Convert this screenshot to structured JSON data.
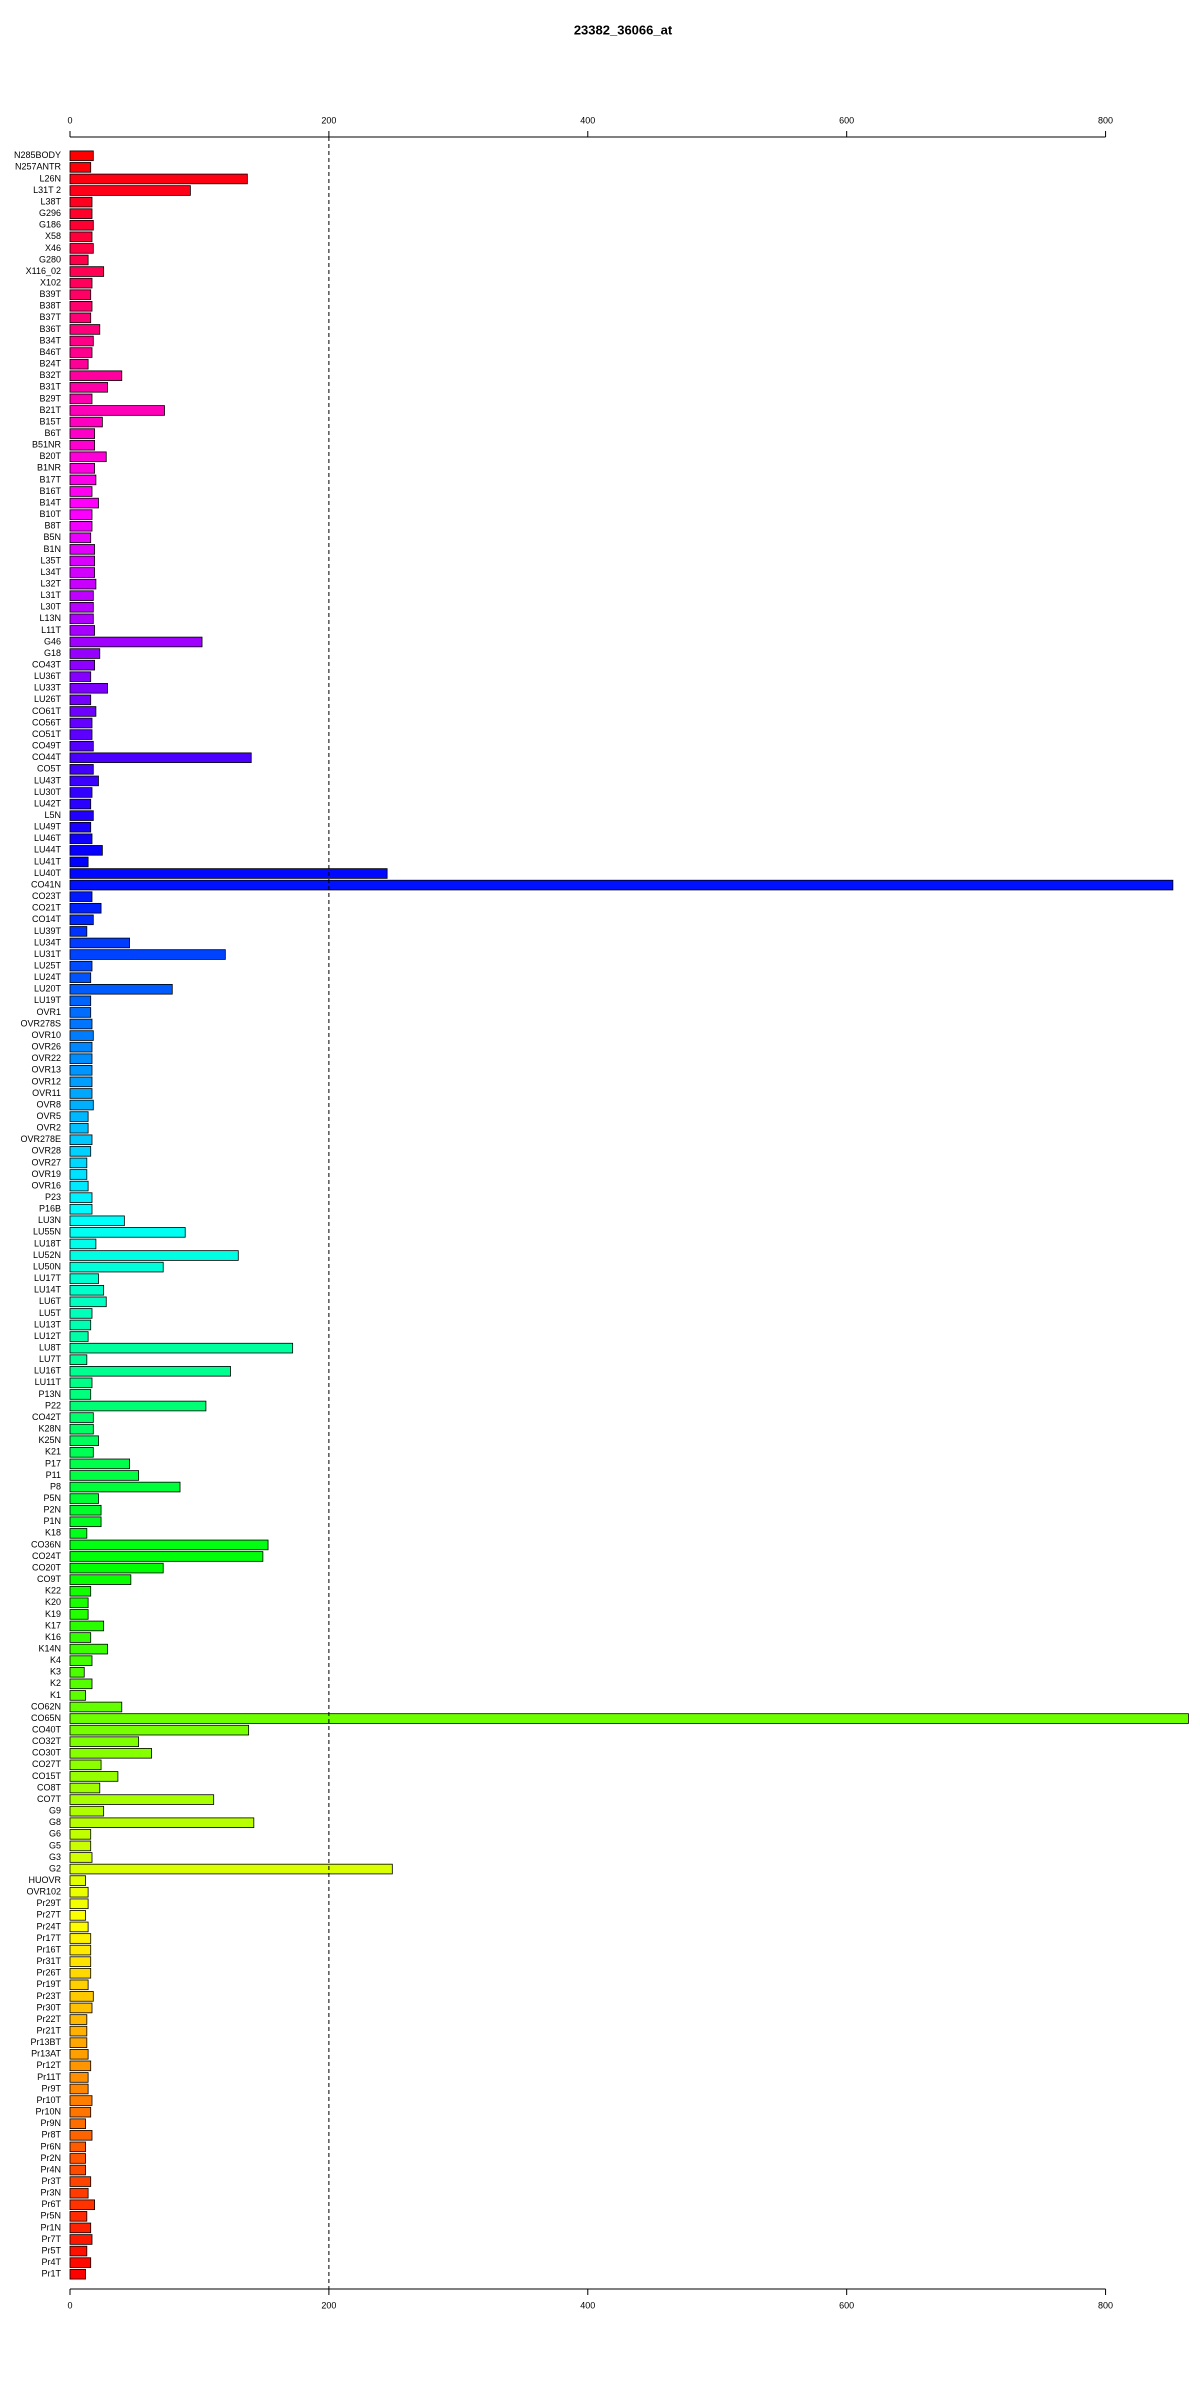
{
  "chart_data": {
    "type": "barh",
    "title": "23382_36066_at",
    "categories": [
      "N285BODY",
      "N257ANTR",
      "L26N",
      "L31T 2",
      "L38T",
      "G296",
      "G186",
      "X58",
      "X46",
      "G280",
      "X116_02",
      "X102",
      "B39T",
      "B38T",
      "B37T",
      "B36T",
      "B34T",
      "B46T",
      "B24T",
      "B32T",
      "B31T",
      "B29T",
      "B21T",
      "B15T",
      "B6T",
      "B51NR",
      "B20T",
      "B1NR",
      "B17T",
      "B16T",
      "B14T",
      "B10T",
      "B8T",
      "B5N",
      "B1N",
      "L35T",
      "L34T",
      "L32T",
      "L31T",
      "L30T",
      "L13N",
      "L11T",
      "G46",
      "G18",
      "CO43T",
      "LU36T",
      "LU33T",
      "LU26T",
      "CO61T",
      "CO56T",
      "CO51T",
      "CO49T",
      "CO44T",
      "CO5T",
      "LU43T",
      "LU30T",
      "LU42T",
      "L5N",
      "LU49T",
      "LU46T",
      "LU44T",
      "LU41T",
      "LU40T",
      "CO41N",
      "CO23T",
      "CO21T",
      "CO14T",
      "LU39T",
      "LU34T",
      "LU31T",
      "LU25T",
      "LU24T",
      "LU20T",
      "LU19T",
      "OVR1",
      "OVR278S",
      "OVR10",
      "OVR26",
      "OVR22",
      "OVR13",
      "OVR12",
      "OVR11",
      "OVR8",
      "OVR5",
      "OVR2",
      "OVR278E",
      "OVR28",
      "OVR27",
      "OVR19",
      "OVR16",
      "P23",
      "P16B",
      "LU3N",
      "LU55N",
      "LU18T",
      "LU52N",
      "LU50N",
      "LU17T",
      "LU14T",
      "LU6T",
      "LU5T",
      "LU13T",
      "LU12T",
      "LU8T",
      "LU7T",
      "LU16T",
      "LU11T",
      "P13N",
      "P22",
      "CO42T",
      "K28N",
      "K25N",
      "K21",
      "P17",
      "P11",
      "P8",
      "P5N",
      "P2N",
      "P1N",
      "K18",
      "CO36N",
      "CO24T",
      "CO20T",
      "CO9T",
      "K22",
      "K20",
      "K19",
      "K17",
      "K16",
      "K14N",
      "K4",
      "K3",
      "K2",
      "K1",
      "CO62N",
      "CO65N",
      "CO40T",
      "CO32T",
      "CO30T",
      "CO27T",
      "CO15T",
      "CO8T",
      "CO7T",
      "G9",
      "G8",
      "G6",
      "G5",
      "G3",
      "G2",
      "HUOVR",
      "OVR102",
      "Pr29T",
      "Pr27T",
      "Pr24T",
      "Pr17T",
      "Pr16T",
      "Pr31T",
      "Pr26T",
      "Pr19T",
      "Pr23T",
      "Pr30T",
      "Pr22T",
      "Pr21T",
      "Pr13BT",
      "Pr13AT",
      "Pr12T",
      "Pr11T",
      "Pr9T",
      "Pr10T",
      "Pr10N",
      "Pr9N",
      "Pr8T",
      "Pr6N",
      "Pr2N",
      "Pr4N",
      "Pr3T",
      "Pr3N",
      "Pr6T",
      "Pr5N",
      "Pr1N",
      "Pr7T",
      "Pr5T",
      "Pr4T",
      "Pr1T"
    ],
    "values": [
      18,
      16,
      137,
      93,
      17,
      17,
      18,
      17,
      18,
      14,
      26,
      17,
      16,
      17,
      16,
      23,
      18,
      17,
      14,
      40,
      29,
      17,
      73,
      25,
      19,
      19,
      28,
      19,
      20,
      17,
      22,
      17,
      17,
      16,
      19,
      19,
      19,
      20,
      18,
      18,
      18,
      19,
      102,
      23,
      19,
      16,
      29,
      16,
      20,
      17,
      17,
      18,
      140,
      18,
      22,
      17,
      16,
      18,
      16,
      17,
      25,
      14,
      245,
      852,
      17,
      24,
      18,
      13,
      46,
      120,
      17,
      16,
      79,
      16,
      16,
      17,
      18,
      17,
      17,
      17,
      17,
      17,
      18,
      14,
      14,
      17,
      16,
      13,
      13,
      14,
      17,
      17,
      42,
      89,
      20,
      130,
      72,
      22,
      26,
      28,
      17,
      16,
      14,
      172,
      13,
      124,
      17,
      16,
      105,
      18,
      18,
      22,
      18,
      46,
      53,
      85,
      22,
      24,
      24,
      13,
      153,
      149,
      72,
      47,
      16,
      14,
      14,
      26,
      16,
      29,
      17,
      11,
      17,
      12,
      40,
      864,
      138,
      53,
      63,
      24,
      37,
      23,
      111,
      26,
      142,
      16,
      16,
      17,
      249,
      12,
      14,
      14,
      12,
      14,
      16,
      16,
      16,
      16,
      14,
      18,
      17,
      13,
      13,
      13,
      14,
      16,
      14,
      14,
      17,
      16,
      12,
      17,
      12,
      12,
      12,
      16,
      14,
      19,
      13,
      16,
      17,
      13,
      16,
      12
    ],
    "colors": [
      "#ff0000",
      "#ff00ff",
      "#0000ff",
      "#00ffff",
      "#00ff00",
      "#ffff00",
      "#ff0000"
    ],
    "xlim": [
      0,
      866
    ],
    "xticks": [
      0,
      200,
      400,
      600,
      800
    ],
    "vline": 200
  }
}
